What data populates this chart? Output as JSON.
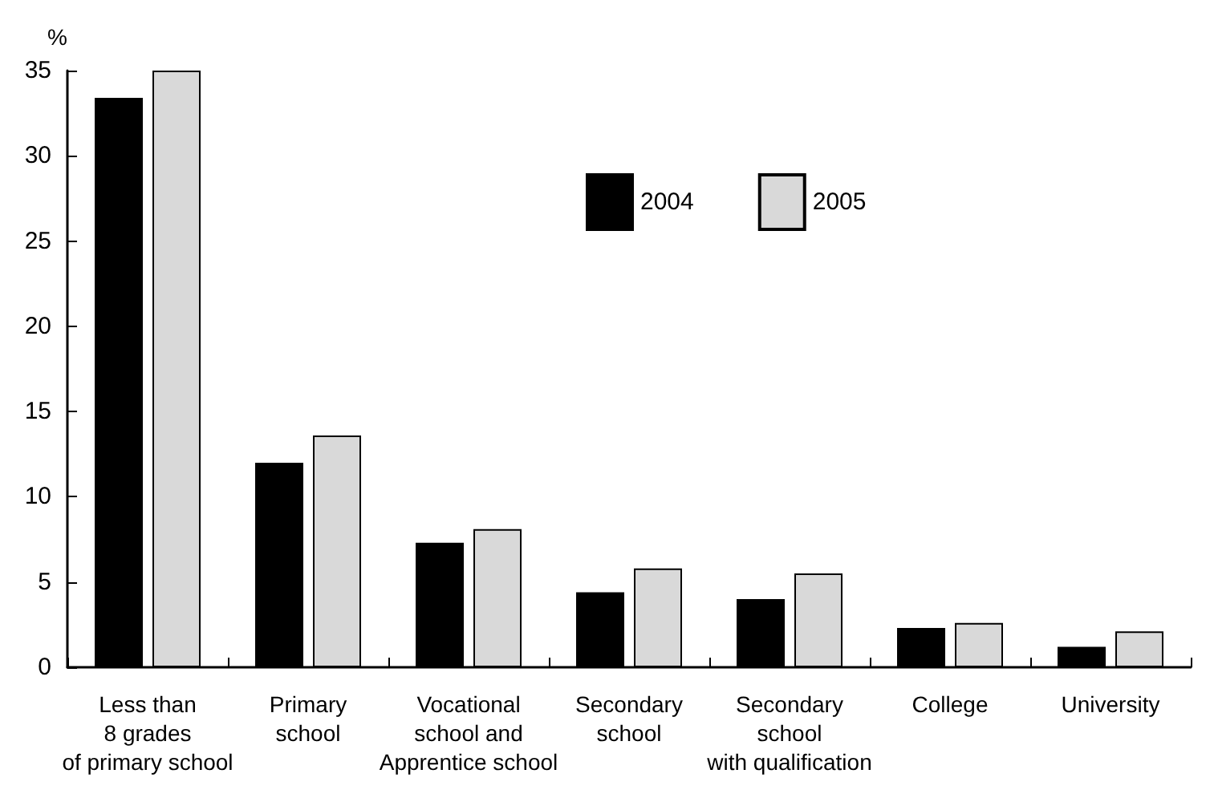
{
  "chart_data": {
    "type": "bar",
    "ylabel": "%",
    "categories": [
      "Less than\n8 grades\nof primary school",
      "Primary\nschool",
      "Vocational\nschool and\nApprentice school",
      "Secondary\nschool",
      "Secondary\nschool\nwith qualification",
      "College",
      "University"
    ],
    "series": [
      {
        "name": "2004",
        "color": "#000000",
        "values": [
          33.4,
          12.0,
          7.3,
          4.4,
          4.0,
          2.3,
          1.2
        ]
      },
      {
        "name": "2005",
        "color": "#d9d9d9",
        "values": [
          35.0,
          13.6,
          8.1,
          5.8,
          5.5,
          2.6,
          2.1
        ]
      }
    ],
    "ylim": [
      0,
      35
    ],
    "yticks": [
      0,
      5,
      10,
      15,
      20,
      25,
      30,
      35
    ],
    "grid": false,
    "legend": "top right"
  }
}
